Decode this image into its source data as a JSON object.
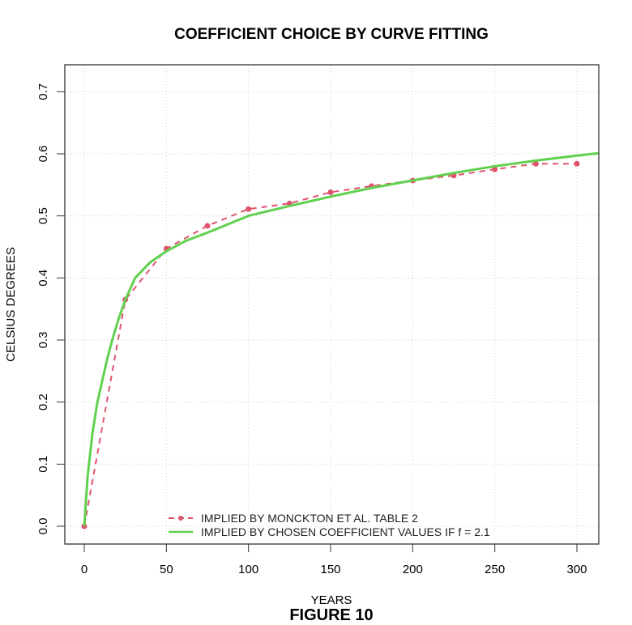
{
  "chart_data": {
    "type": "line",
    "title": "COEFFICIENT CHOICE BY CURVE FITTING",
    "xlabel": "YEARS",
    "ylabel": "CELSIUS DEGREES",
    "caption": "FIGURE 10",
    "xlim": [
      -12,
      313
    ],
    "ylim": [
      -0.028,
      0.745
    ],
    "x_ticks": [
      0,
      50,
      100,
      150,
      200,
      250,
      300
    ],
    "y_ticks": [
      0.0,
      0.1,
      0.2,
      0.3,
      0.4,
      0.5,
      0.6,
      0.7
    ],
    "x_tick_labels": [
      "0",
      "50",
      "100",
      "150",
      "200",
      "250",
      "300"
    ],
    "y_tick_labels": [
      "0.0",
      "0.1",
      "0.2",
      "0.3",
      "0.4",
      "0.5",
      "0.6",
      "0.7"
    ],
    "grid": true,
    "legend_position": "bottom",
    "series": [
      {
        "name": "IMPLIED BY MONCKTON ET AL. TABLE 2",
        "color": "#DF536B",
        "style": "dashed-with-points",
        "x": [
          0,
          25,
          50,
          75,
          100,
          125,
          150,
          175,
          200,
          225,
          250,
          275,
          300
        ],
        "values": [
          0.0,
          0.365,
          0.447,
          0.484,
          0.511,
          0.52,
          0.538,
          0.548,
          0.557,
          0.565,
          0.575,
          0.584,
          0.584
        ]
      },
      {
        "name": "IMPLIED BY CHOSEN COEFFICIENT VALUES IF f = 2.1",
        "color": "#61D04F",
        "style": "solid",
        "x": [
          0,
          2,
          5,
          8,
          11,
          14,
          17,
          21,
          25,
          31,
          40,
          50,
          62,
          75,
          100,
          125,
          150,
          175,
          200,
          225,
          250,
          275,
          300,
          313
        ],
        "values": [
          0.0,
          0.08,
          0.15,
          0.2,
          0.235,
          0.27,
          0.3,
          0.335,
          0.365,
          0.4,
          0.425,
          0.443,
          0.46,
          0.473,
          0.5,
          0.516,
          0.531,
          0.545,
          0.557,
          0.569,
          0.58,
          0.589,
          0.597,
          0.601
        ]
      }
    ]
  }
}
